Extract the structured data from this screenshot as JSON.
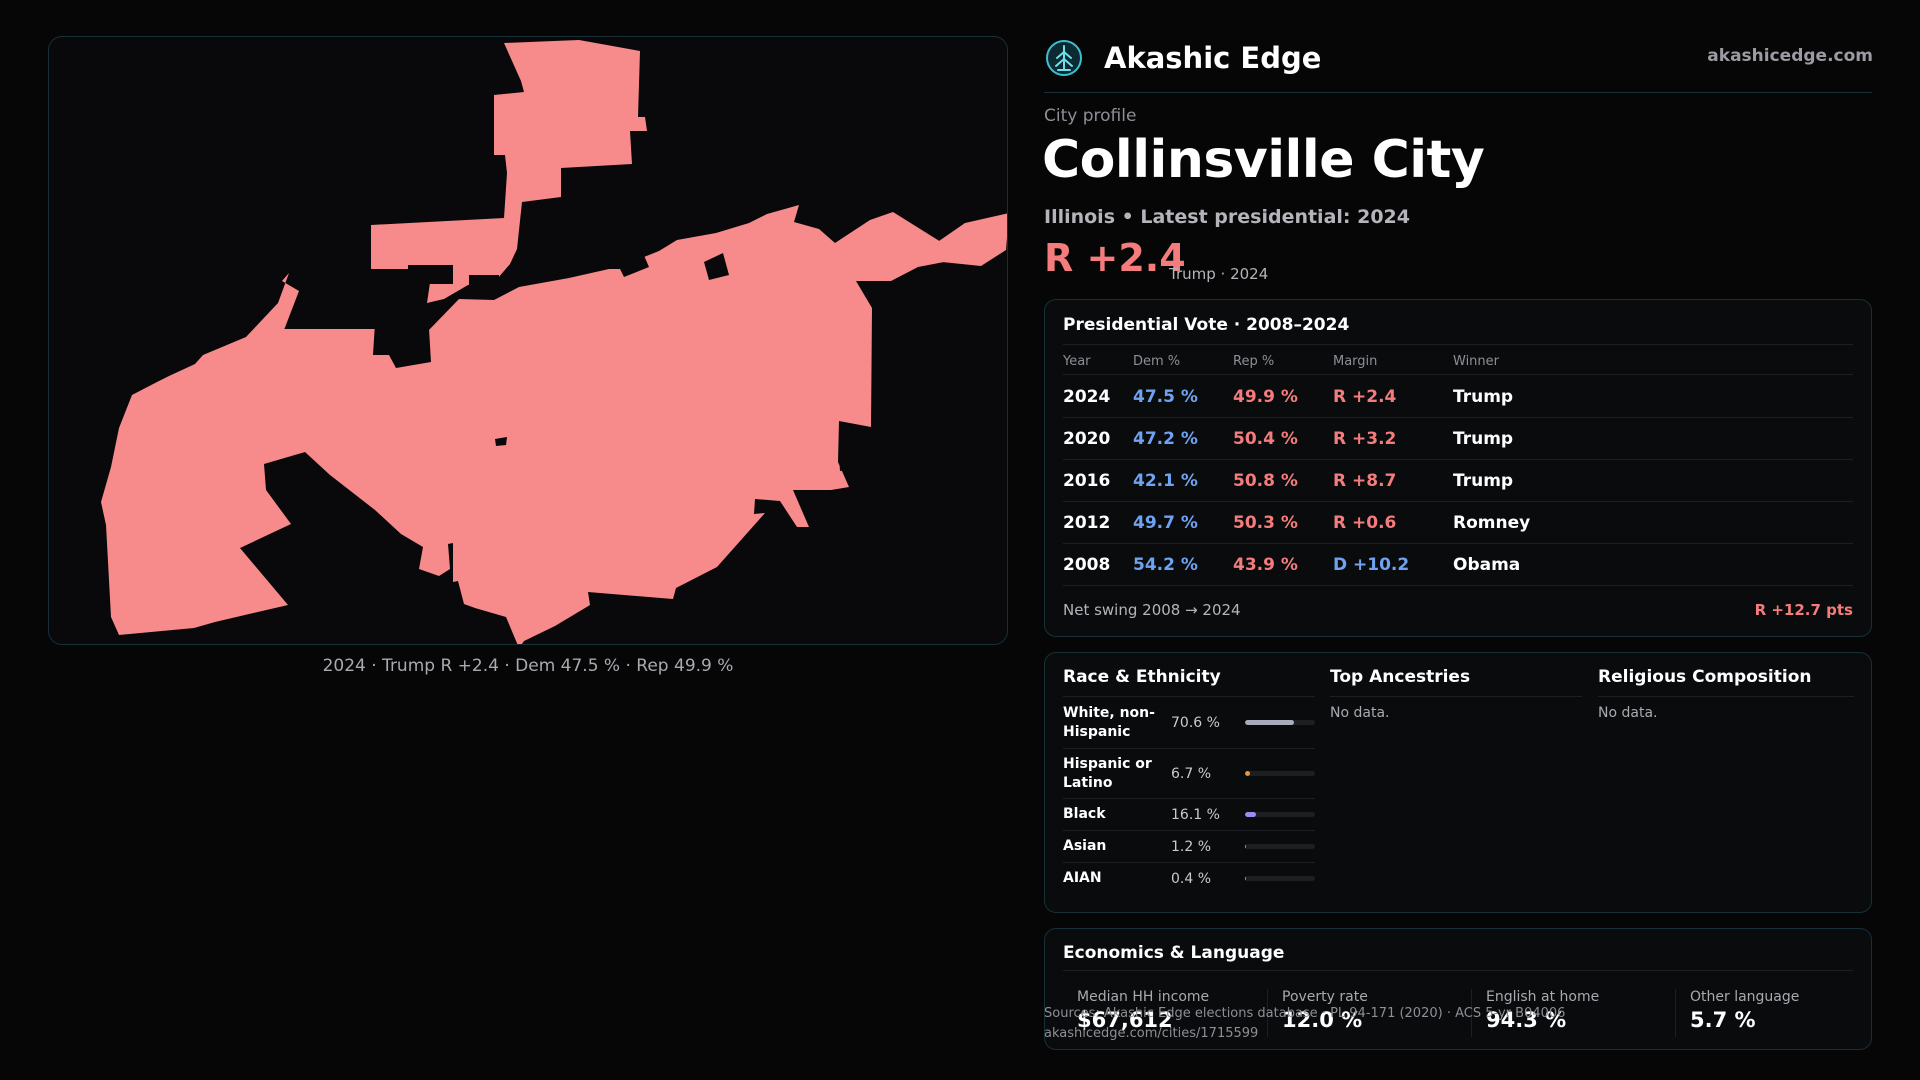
{
  "brand": {
    "name": "Akashic Edge",
    "logo_icon": "tree-emblem-icon",
    "site": "akashicedge.com"
  },
  "profile": {
    "eyebrow": "City profile",
    "city": "Collinsville City",
    "subtitle": "Illinois • Latest presidential: 2024",
    "headline_margin": "R +2.4",
    "headline_winner": "Trump · 2024"
  },
  "map": {
    "fill_color": "#f78a8a",
    "caption": "2024 · Trump R +2.4 · Dem 47.5 % · Rep 49.9 %"
  },
  "vote": {
    "title": "Presidential Vote · 2008–2024",
    "headers": {
      "year": "Year",
      "dem": "Dem %",
      "rep": "Rep %",
      "margin": "Margin",
      "winner": "Winner"
    },
    "rows": [
      {
        "year": "2024",
        "dem": "47.5 %",
        "rep": "49.9 %",
        "margin": "R +2.4",
        "party": "R",
        "winner": "Trump"
      },
      {
        "year": "2020",
        "dem": "47.2 %",
        "rep": "50.4 %",
        "margin": "R +3.2",
        "party": "R",
        "winner": "Trump"
      },
      {
        "year": "2016",
        "dem": "42.1 %",
        "rep": "50.8 %",
        "margin": "R +8.7",
        "party": "R",
        "winner": "Trump"
      },
      {
        "year": "2012",
        "dem": "49.7 %",
        "rep": "50.3 %",
        "margin": "R +0.6",
        "party": "R",
        "winner": "Romney"
      },
      {
        "year": "2008",
        "dem": "54.2 %",
        "rep": "43.9 %",
        "margin": "D +10.2",
        "party": "D",
        "winner": "Obama"
      }
    ],
    "net_swing_label": "Net swing 2008 → 2024",
    "net_swing_value": "R +12.7 pts",
    "colors": {
      "dem": "#6fa3f2",
      "rep": "#f47c7c"
    }
  },
  "race": {
    "title": "Race & Ethnicity",
    "rows": [
      {
        "label": "White, non-Hispanic",
        "pct": "70.6 %",
        "fraction": 0.706,
        "color": "#a7adba"
      },
      {
        "label": "Hispanic or Latino",
        "pct": "6.7 %",
        "fraction": 0.067,
        "color": "#e59a3a"
      },
      {
        "label": "Black",
        "pct": "16.1 %",
        "fraction": 0.161,
        "color": "#9b8cf2"
      },
      {
        "label": "Asian",
        "pct": "1.2 %",
        "fraction": 0.012,
        "color": "#4cc3a4"
      },
      {
        "label": "AIAN",
        "pct": "0.4 %",
        "fraction": 0.004,
        "color": "#c97bd1"
      }
    ]
  },
  "ancestries": {
    "title": "Top Ancestries",
    "empty": "No data."
  },
  "religion": {
    "title": "Religious Composition",
    "empty": "No data."
  },
  "economics": {
    "title": "Economics & Language",
    "stats": [
      {
        "label": "Median HH income",
        "value": "$67,612"
      },
      {
        "label": "Poverty rate",
        "value": "12.0 %"
      },
      {
        "label": "English at home",
        "value": "94.3 %"
      },
      {
        "label": "Other language",
        "value": "5.7 %"
      }
    ]
  },
  "source": {
    "line": "Sources: Akashic Edge elections database · PL 94-171 (2020) · ACS 5-yr B04006",
    "url": "akashicedge.com/cities/1715599"
  }
}
